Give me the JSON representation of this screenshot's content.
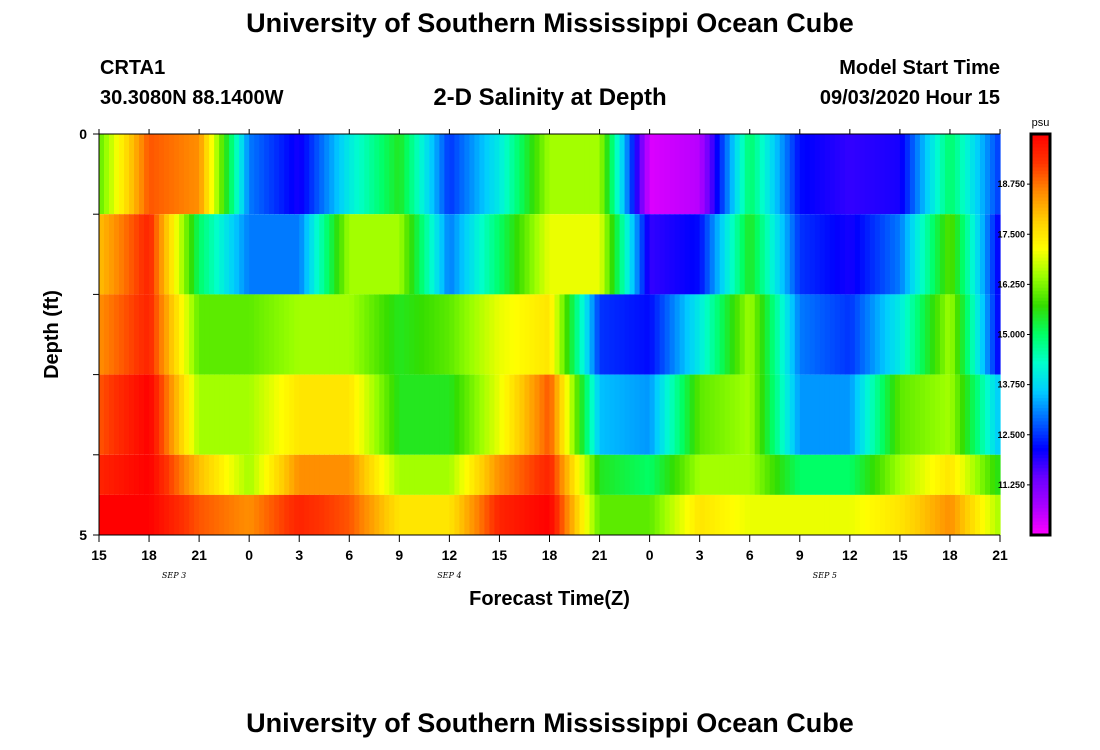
{
  "header": {
    "title": "University of Southern Mississippi Ocean Cube",
    "station": "CRTA1",
    "coords": "30.3080N 88.1400W",
    "chart_title": "2-D Salinity at Depth",
    "model_label": "Model Start Time",
    "model_time": "09/03/2020 Hour 15"
  },
  "footer": {
    "title": "University of Southern Mississippi Ocean Cube"
  },
  "chart_data": {
    "type": "heatmap",
    "title": "2-D Salinity at Depth",
    "xlabel": "Forecast Time(Z)",
    "ylabel": "Depth (ft)",
    "x_tick_labels": [
      "15",
      "18",
      "21",
      "0",
      "3",
      "6",
      "9",
      "12",
      "15",
      "18",
      "21",
      "0",
      "3",
      "6",
      "9",
      "12",
      "15",
      "18",
      "21"
    ],
    "x_hours": [
      0,
      3,
      6,
      9,
      12,
      15,
      18,
      21,
      24,
      27,
      30,
      33,
      36,
      39,
      42,
      45,
      48,
      51,
      54
    ],
    "date_labels": [
      {
        "text": "SEP 3",
        "hour": 4.5
      },
      {
        "text": "SEP 4",
        "hour": 21
      },
      {
        "text": "SEP 5",
        "hour": 43.5
      }
    ],
    "y_tick_labels": [
      "0",
      "5"
    ],
    "ylim": [
      0,
      5
    ],
    "xlim": [
      0,
      54
    ],
    "colorbar": {
      "unit": "psu",
      "labels": [
        "18.750",
        "17.500",
        "16.250",
        "15.000",
        "13.750",
        "12.500",
        "11.250"
      ],
      "range": [
        10.0,
        20.0
      ],
      "colors": [
        "#ff00ff",
        "#aa00ff",
        "#6a00ff",
        "#0000ff",
        "#0066ff",
        "#00ccff",
        "#00ffcc",
        "#00ff66",
        "#33dd00",
        "#99ff00",
        "#ffff00",
        "#ffcc00",
        "#ff8800",
        "#ff3300",
        "#ff0000"
      ]
    },
    "depth_layers": [
      {
        "depth": 0.5,
        "values": [
          16.0,
          19.0,
          18.5,
          13.0,
          12.0,
          14.0,
          15.5,
          12.5,
          14.0,
          16.5,
          16.5,
          10.3,
          10.6,
          15.0,
          12.2,
          11.8,
          12.0,
          15.0,
          12.5
        ]
      },
      {
        "depth": 1.5,
        "values": [
          18.0,
          19.5,
          15.0,
          13.0,
          13.0,
          16.5,
          16.5,
          13.0,
          15.0,
          17.0,
          17.0,
          11.8,
          12.2,
          15.5,
          12.5,
          12.0,
          13.0,
          16.0,
          12.0
        ]
      },
      {
        "depth": 2.5,
        "values": [
          18.5,
          19.5,
          16.0,
          16.0,
          16.5,
          16.5,
          15.5,
          16.0,
          17.0,
          17.5,
          12.5,
          12.2,
          14.0,
          16.5,
          13.0,
          12.5,
          14.0,
          16.5,
          12.0
        ]
      },
      {
        "depth": 3.5,
        "values": [
          19.0,
          20.0,
          16.5,
          16.5,
          17.5,
          17.5,
          15.5,
          15.5,
          17.0,
          19.0,
          13.5,
          13.2,
          16.0,
          16.5,
          13.2,
          13.2,
          16.0,
          16.5,
          13.5
        ]
      },
      {
        "depth": 4.5,
        "values": [
          19.5,
          20.0,
          18.0,
          16.5,
          18.5,
          18.5,
          16.5,
          16.5,
          18.5,
          19.5,
          15.5,
          15.0,
          16.5,
          16.5,
          15.0,
          15.0,
          16.5,
          17.5,
          15.5
        ]
      },
      {
        "depth": 5.0,
        "values": [
          20.0,
          20.0,
          19.0,
          18.5,
          19.5,
          19.0,
          17.5,
          17.5,
          19.5,
          20.0,
          16.0,
          16.0,
          17.5,
          17.0,
          17.0,
          17.0,
          17.5,
          18.5,
          16.5
        ]
      }
    ],
    "grid": false,
    "legend": "right"
  }
}
